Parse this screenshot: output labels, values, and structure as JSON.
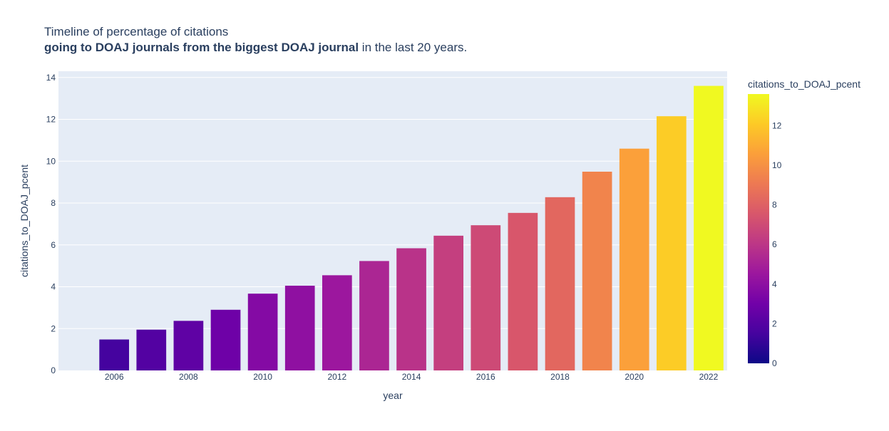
{
  "title": {
    "line1": "Timeline of percentage of citations",
    "line2_bold": "going to DOAJ journals from the biggest DOAJ journal",
    "line2_rest": " in the last 20 years."
  },
  "chart_data": {
    "type": "bar",
    "xlabel": "year",
    "ylabel": "citations_to_DOAJ_pcent",
    "x": [
      2006,
      2007,
      2008,
      2009,
      2010,
      2011,
      2012,
      2013,
      2014,
      2015,
      2016,
      2017,
      2018,
      2019,
      2020,
      2021,
      2022
    ],
    "values": [
      1.48,
      1.95,
      2.37,
      2.9,
      3.67,
      4.05,
      4.55,
      5.23,
      5.84,
      6.44,
      6.94,
      7.53,
      8.28,
      9.5,
      10.6,
      12.15,
      13.6
    ],
    "xlim": [
      2004.5,
      2022.5
    ],
    "ylim": [
      0,
      14.3
    ],
    "x_ticks": [
      2006,
      2008,
      2010,
      2012,
      2014,
      2016,
      2018,
      2020,
      2022
    ],
    "y_ticks": [
      0,
      2,
      4,
      6,
      8,
      10,
      12,
      14
    ],
    "grid": true,
    "plot_background": "#e5ecf6",
    "colorbar": {
      "title": "citations_to_DOAJ_pcent",
      "range": [
        0,
        13.6
      ],
      "ticks": [
        0,
        2,
        4,
        6,
        8,
        10,
        12
      ],
      "colorscale": [
        "#0d0887",
        "#46039f",
        "#7201a8",
        "#9c179e",
        "#bd3786",
        "#d8576b",
        "#ed7953",
        "#fb9f3a",
        "#fdca26",
        "#f0f921"
      ]
    }
  }
}
